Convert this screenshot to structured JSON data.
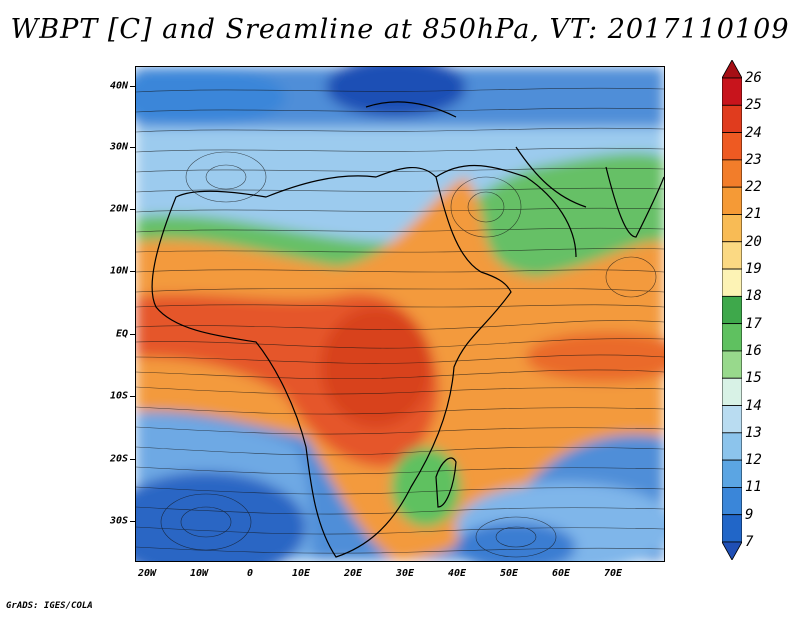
{
  "title": "WBPT [C] and Sreamline at 850hPa, VT: 2017110109",
  "footer": "GrADS: IGES/COLA",
  "map": {
    "lat_labels": [
      "40N",
      "30N",
      "20N",
      "10N",
      "EQ",
      "10S",
      "20S",
      "30S"
    ],
    "lon_labels": [
      "20W",
      "10W",
      "0",
      "10E",
      "20E",
      "30E",
      "40E",
      "50E",
      "60E",
      "70E"
    ]
  },
  "colorbar": {
    "labels": [
      "26",
      "25",
      "24",
      "23",
      "22",
      "21",
      "20",
      "19",
      "18",
      "17",
      "16",
      "15",
      "14",
      "13",
      "12",
      "11",
      "9",
      "7"
    ],
    "colors": [
      "#a50f15",
      "#c8141c",
      "#e03c1e",
      "#ee5a22",
      "#f27d2a",
      "#f59a36",
      "#f8bb55",
      "#fbd983",
      "#fdf3b5",
      "#3ea84b",
      "#5fc160",
      "#98d98c",
      "#d8f2e6",
      "#b9dcf1",
      "#8cc4ec",
      "#5ba5e3",
      "#3a86d9",
      "#2166c8",
      "#1f4fb5"
    ]
  }
}
